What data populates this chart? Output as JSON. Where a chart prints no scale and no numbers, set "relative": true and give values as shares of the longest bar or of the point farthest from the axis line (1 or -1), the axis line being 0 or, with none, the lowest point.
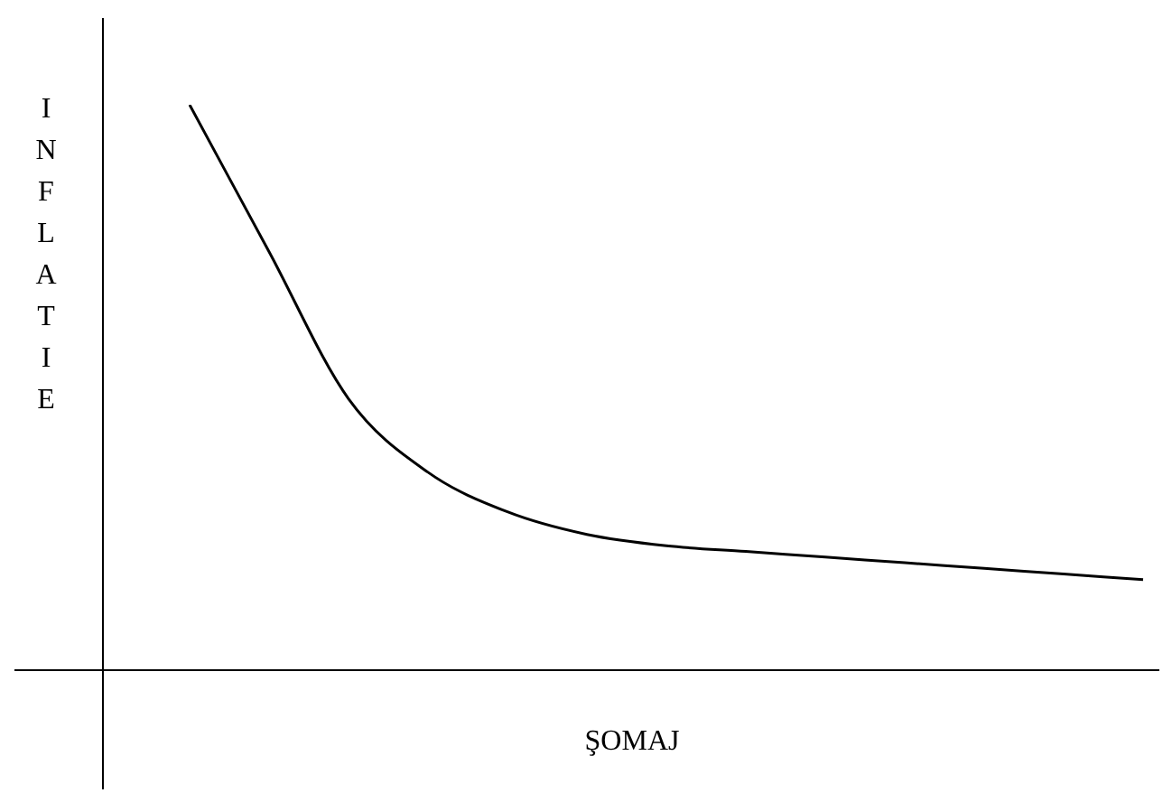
{
  "chart_data": {
    "type": "line",
    "xlabel": "ŞOMAJ",
    "ylabel": "INFLATIE",
    "relative": true,
    "marker": "none",
    "legend": false,
    "categories": [
      null,
      null,
      null,
      null,
      null,
      null,
      null,
      null,
      null,
      null,
      null,
      null,
      null
    ],
    "series": [
      {
        "color": "#000000",
        "values": [
          1,
          0.74,
          0.48,
          0.35,
          0.28,
          0.24,
          0.22,
          0.21,
          0.2,
          0.19,
          0.18,
          0.17,
          0.16
        ]
      }
    ]
  }
}
